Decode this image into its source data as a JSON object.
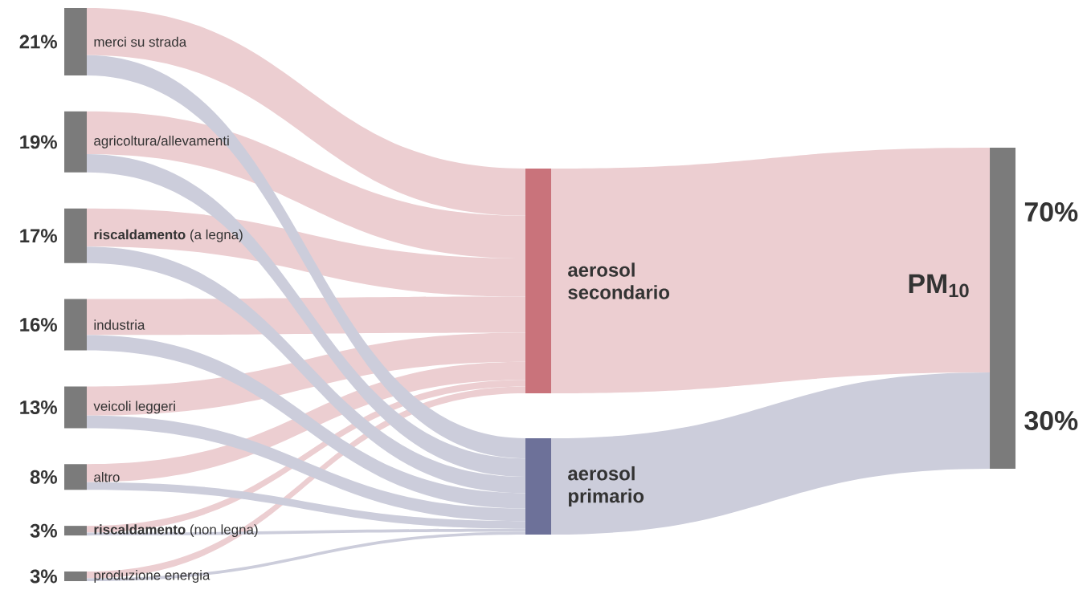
{
  "chart_data": {
    "type": "other",
    "categories": [
      "merci su strada",
      "agricoltura/allevamenti",
      "**riscaldamento** (a legna)",
      "industria",
      "veicoli leggeri",
      "altro",
      "**riscaldamento** (non legna)",
      "produzione energia",
      "aerosol secondario",
      "aerosol primario"
    ],
    "values": [
      21,
      19,
      17,
      16,
      13,
      8,
      3,
      3,
      70,
      30
    ],
    "value_labels": [
      "21%",
      "19%",
      "17%",
      "16%",
      "13%",
      "8%",
      "3%",
      "3%",
      "70%",
      "30%"
    ],
    "annotations": [
      "PM$_{10}$"
    ]
  }
}
